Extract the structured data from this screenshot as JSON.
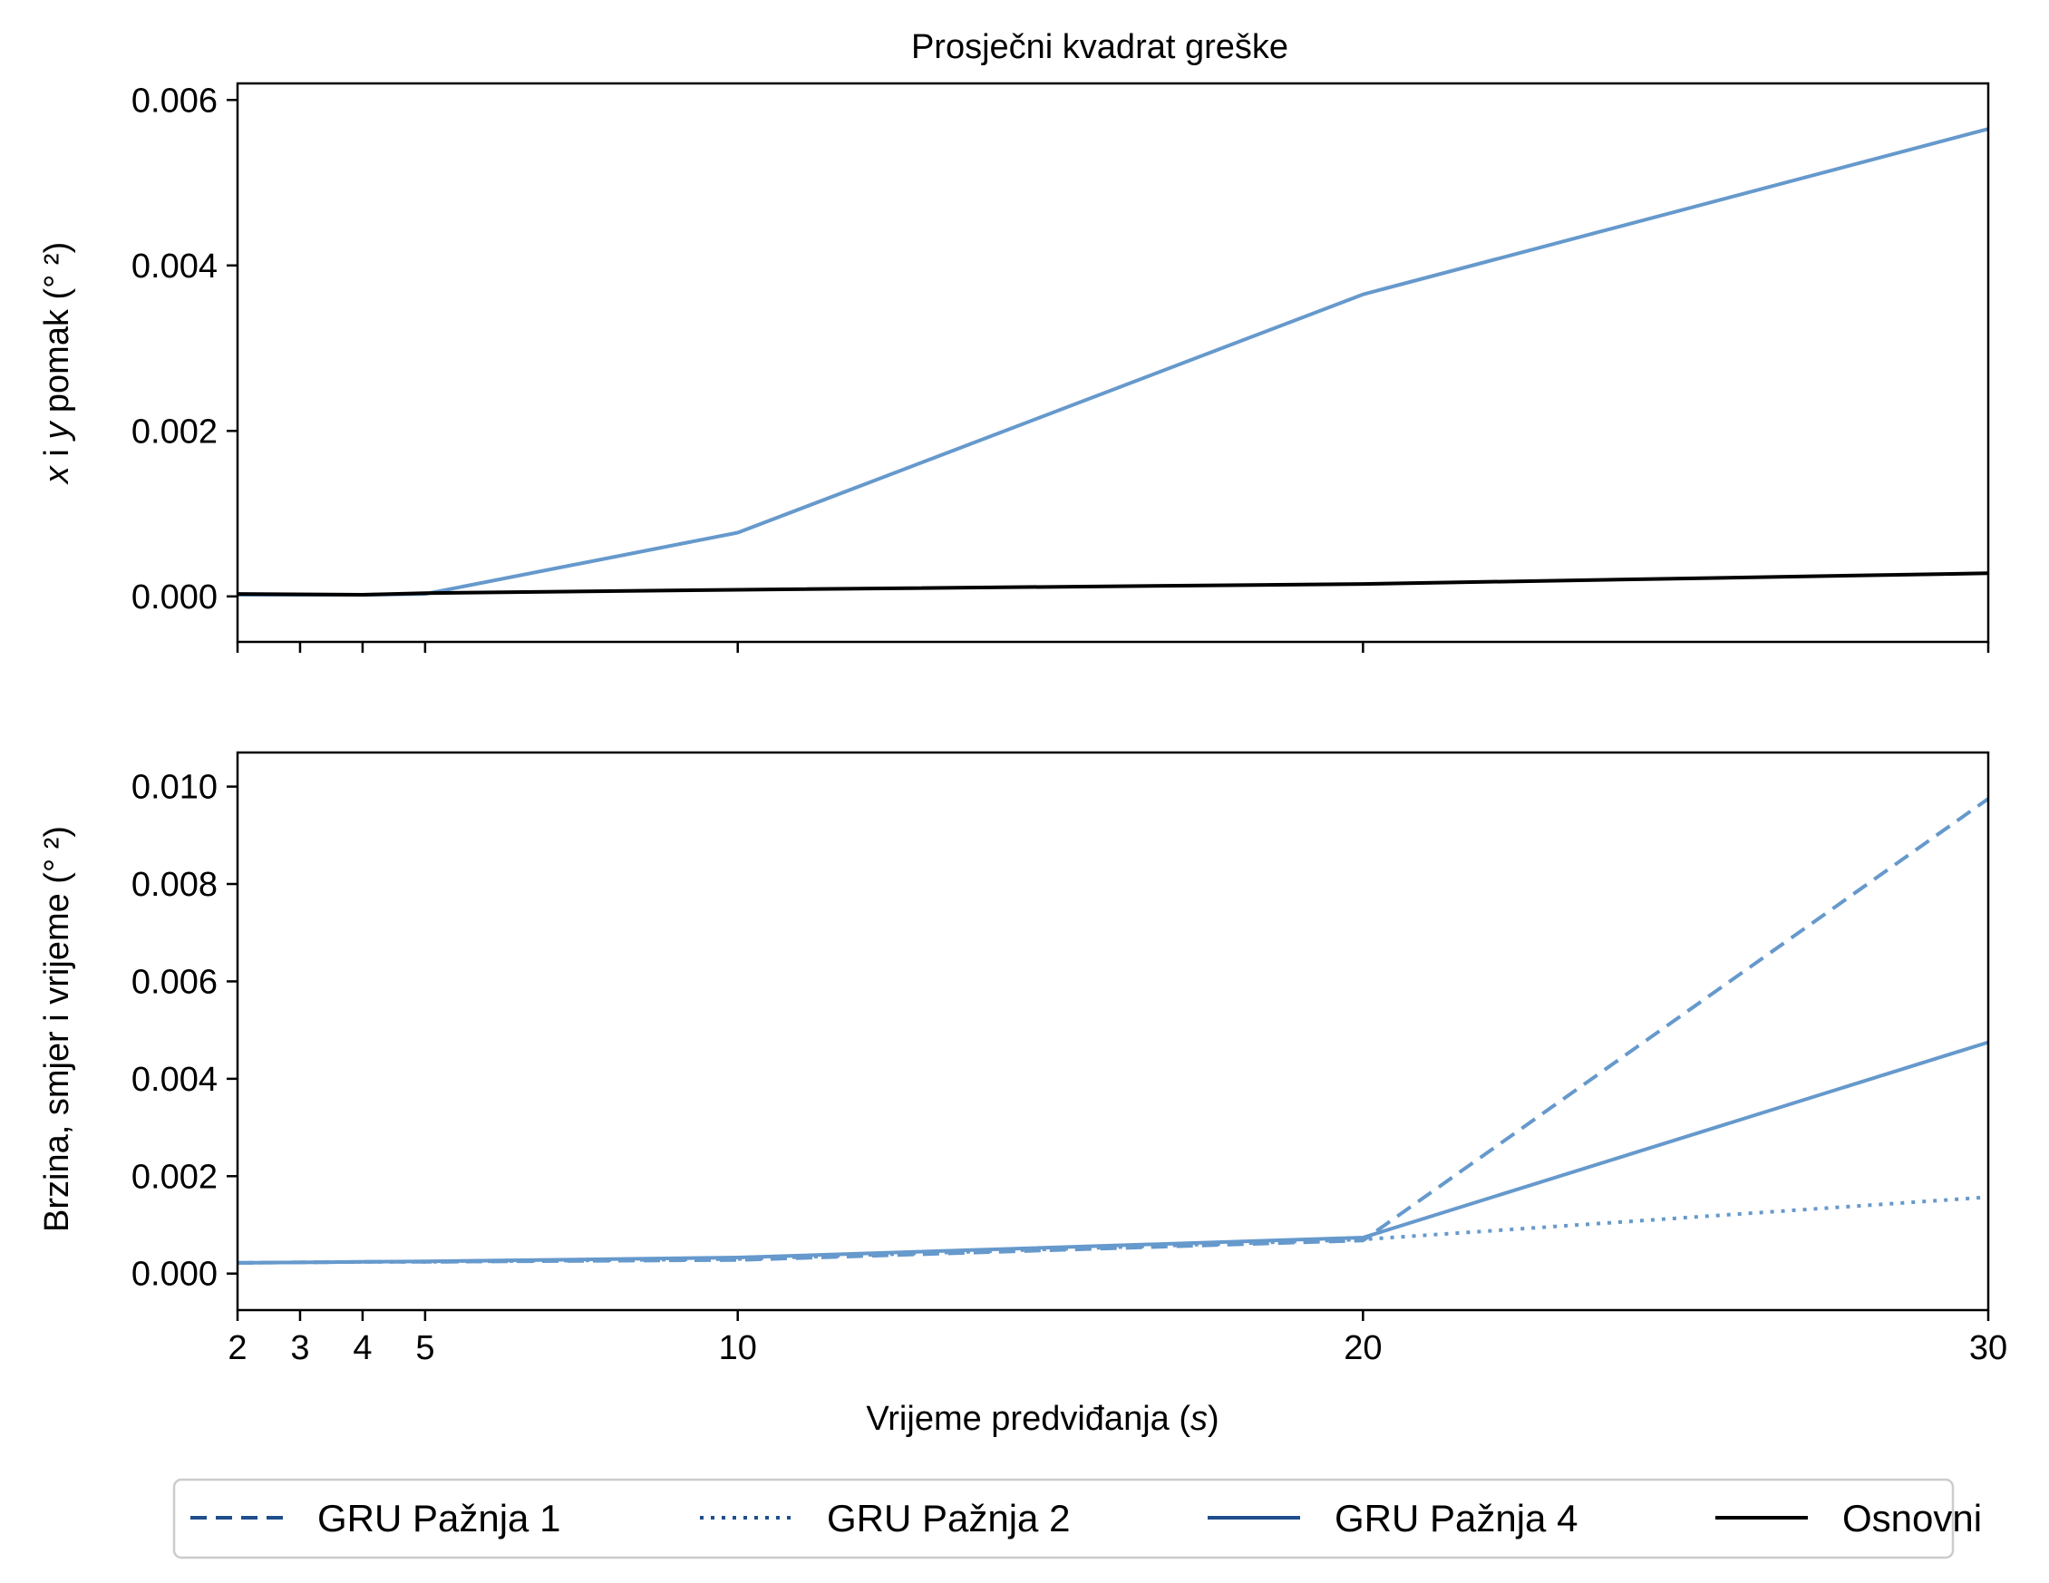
{
  "chart_data": {
    "type": "line",
    "title": "Prosječni kvadrat greške",
    "xlabel": "Vrijeme predviđanja (s)",
    "xlabel_parts": {
      "pre": "Vrijeme predviđanja (",
      "var": "s",
      "post": ")"
    },
    "x_ticks": [
      2,
      3,
      4,
      5,
      10,
      20,
      30
    ],
    "xlim": [
      2,
      30
    ],
    "legend": {
      "placement": "bottom-center",
      "entries": [
        {
          "label": "GRU Pažnja 1",
          "style": "dashed",
          "color": "#1f4e8c"
        },
        {
          "label": "GRU Pažnja 2",
          "style": "dotted",
          "color": "#1f4e8c"
        },
        {
          "label": "GRU Pažnja 4",
          "style": "solid",
          "color": "#1f4e8c"
        },
        {
          "label": "Osnovni",
          "style": "solid",
          "color": "#000000"
        }
      ]
    },
    "panels": [
      {
        "ylabel_parts": {
          "v1": "x",
          "mid": " i ",
          "v2": "y",
          "post": " pomak (° ²)"
        },
        "ylim": [
          -0.00055,
          0.0062
        ],
        "y_ticks": [
          "0.000",
          "0.002",
          "0.004",
          "0.006"
        ],
        "grid": false,
        "series": [
          {
            "x": [
              2,
              4,
              5,
              10,
              20,
              30
            ],
            "y": [
              2e-05,
              2e-05,
              3e-05,
              0.00077,
              0.00365,
              0.00565
            ],
            "style": "solid",
            "color": "#6699cc"
          },
          {
            "x": [
              2,
              4,
              5,
              10,
              20,
              30
            ],
            "y": [
              3e-05,
              2e-05,
              4e-05,
              8e-05,
              0.00015,
              0.00028
            ],
            "style": "solid",
            "color": "#000000"
          }
        ]
      },
      {
        "ylabel": "Brzina, smjer i vrijeme (° ²)",
        "ylim": [
          -0.00075,
          0.0107
        ],
        "y_ticks": [
          "0.000",
          "0.002",
          "0.004",
          "0.006",
          "0.008",
          "0.010"
        ],
        "grid": false,
        "series": [
          {
            "x": [
              2,
              4,
              5,
              10,
              20,
              30
            ],
            "y": [
              0.00022,
              0.00024,
              0.00024,
              0.00028,
              0.00068,
              0.00975
            ],
            "style": "dashed",
            "color": "#6699cc"
          },
          {
            "x": [
              2,
              4,
              5,
              10,
              20,
              30
            ],
            "y": [
              0.00022,
              0.00024,
              0.00024,
              0.0003,
              0.0007,
              0.00157
            ],
            "style": "dotted",
            "color": "#6699cc"
          },
          {
            "x": [
              2,
              4,
              5,
              10,
              20,
              30
            ],
            "y": [
              0.00022,
              0.00024,
              0.00025,
              0.00033,
              0.00074,
              0.00475
            ],
            "style": "solid",
            "color": "#6699cc"
          }
        ]
      }
    ]
  }
}
